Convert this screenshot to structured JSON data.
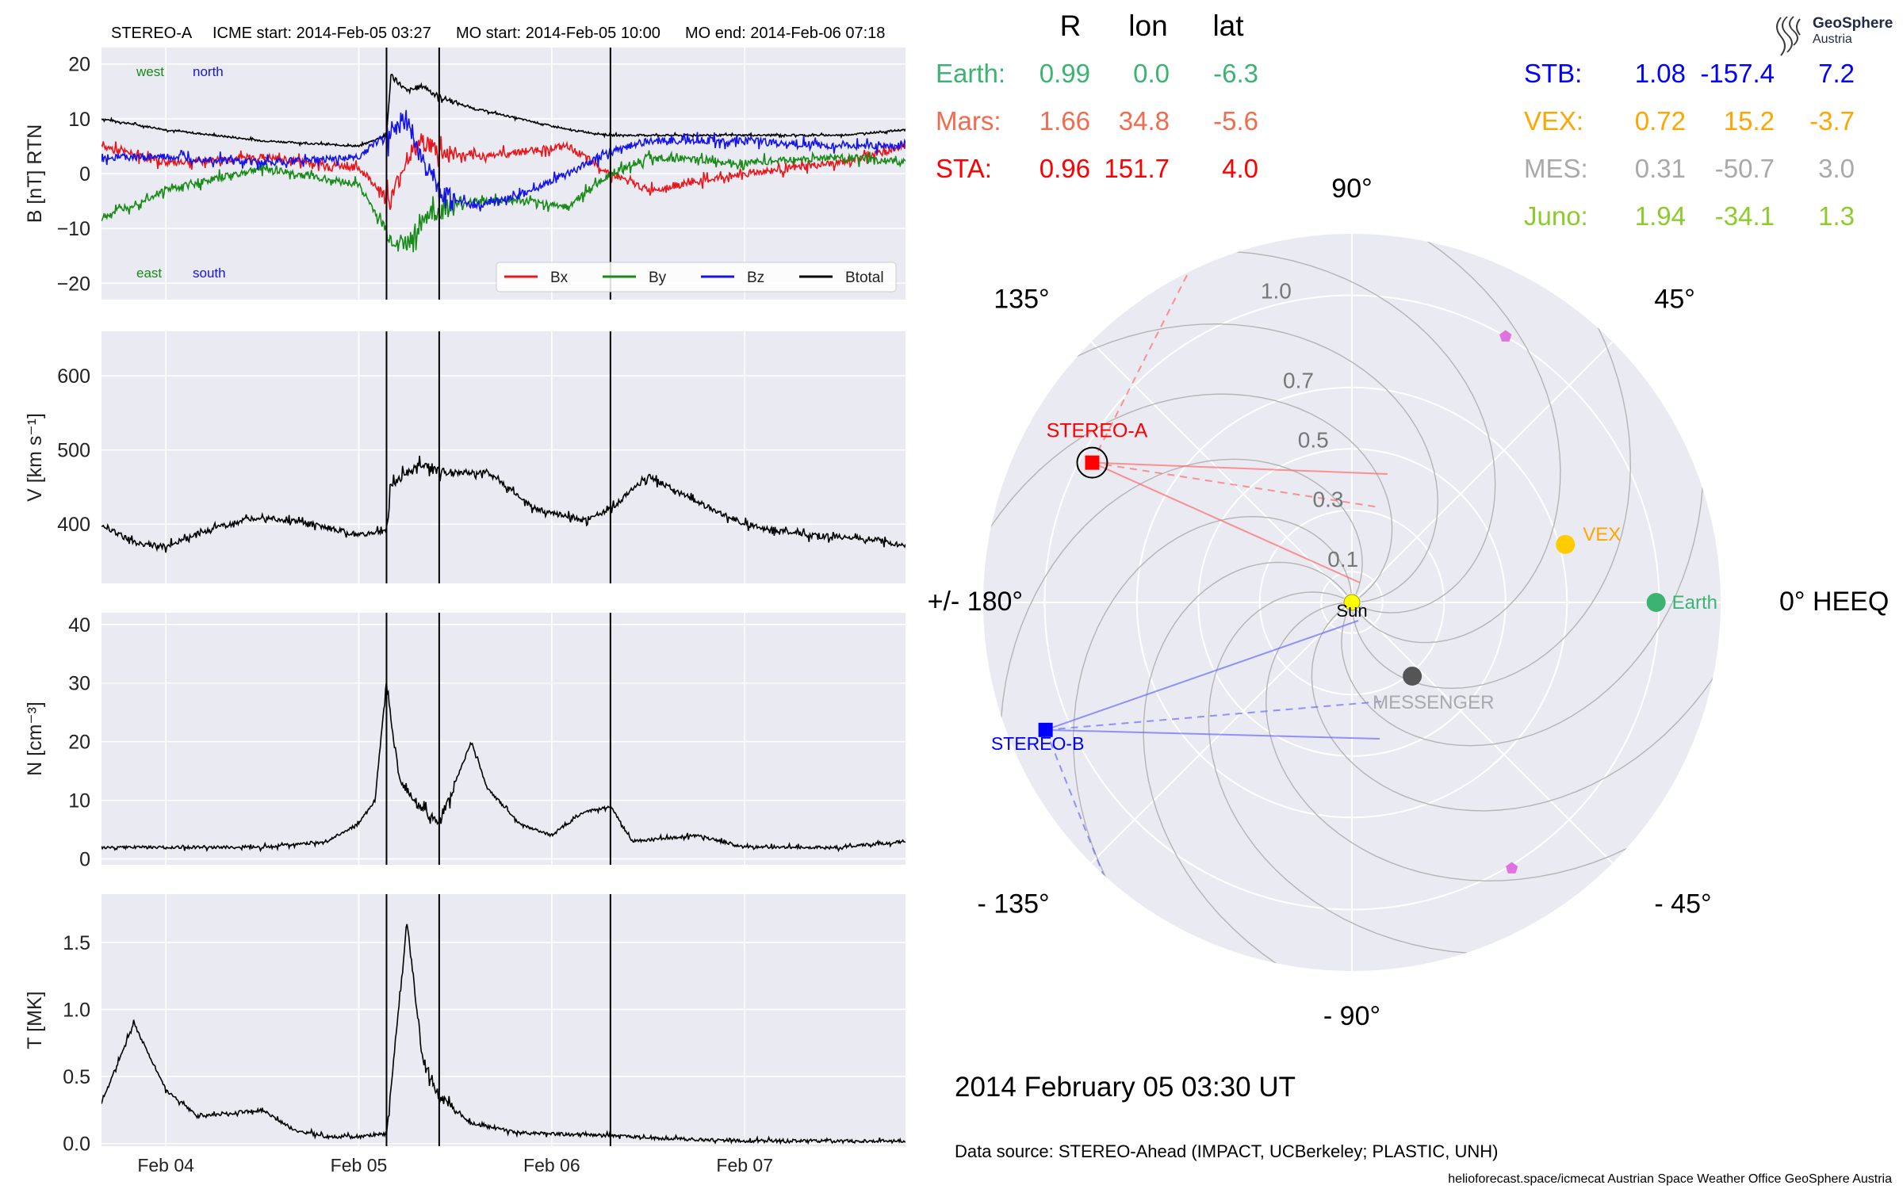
{
  "header": {
    "spacecraft": "STEREO-A",
    "icme_start": "ICME start: 2014-Feb-05 03:27",
    "mo_start": "MO start: 2014-Feb-05 10:00",
    "mo_end": "MO end: 2014-Feb-06 07:18"
  },
  "timestamp": "2014 February 05  03:30 UT",
  "data_source": "Data source: STEREO-Ahead (IMPACT, UCBerkeley; PLASTIC, UNH)",
  "footer": "helioforecast.space/icmecat   Austrian Space Weather Office   GeoSphere Austria",
  "logo": {
    "name": "GeoSphere",
    "sub": "Austria"
  },
  "colors": {
    "Bx": "#e8161b",
    "By": "#178a17",
    "Bz": "#1414e8",
    "Btotal": "#000000",
    "earth": "#3cb371",
    "mars": "#f26b4e",
    "sta": "#ff0000",
    "stb": "#0000ff",
    "vex": "#ffa500",
    "mes": "#a9a9a9",
    "juno": "#8ccc2a",
    "panel_bg": "#eaeaf2"
  },
  "table": {
    "columns": [
      "R",
      "lon",
      "lat"
    ],
    "left": [
      {
        "name": "Earth:",
        "R": "0.99",
        "lon": "0.0",
        "lat": "-6.3",
        "color_key": "earth"
      },
      {
        "name": "Mars:",
        "R": "1.66",
        "lon": "34.8",
        "lat": "-5.6",
        "color_key": "mars"
      },
      {
        "name": "STA:",
        "R": "0.96",
        "lon": "151.7",
        "lat": "4.0",
        "color_key": "sta"
      }
    ],
    "right": [
      {
        "name": "STB:",
        "R": "1.08",
        "lon": "-157.4",
        "lat": "7.2",
        "color_key": "stb"
      },
      {
        "name": "VEX:",
        "R": "0.72",
        "lon": "15.2",
        "lat": "-3.7",
        "color_key": "vex"
      },
      {
        "name": "MES:",
        "R": "0.31",
        "lon": "-50.7",
        "lat": "3.0",
        "color_key": "mes"
      },
      {
        "name": "Juno:",
        "R": "1.94",
        "lon": "-34.1",
        "lat": "1.3",
        "color_key": "juno"
      }
    ]
  },
  "chart_data": [
    {
      "type": "line",
      "panel": "magnetic_field",
      "ylabel": "B [nT] RTN",
      "ylim": [
        -23,
        23
      ],
      "yticks": [
        20,
        10,
        0,
        -10,
        -20
      ],
      "ytick_labels": [
        "20",
        "10",
        "0",
        "−10",
        "−20"
      ],
      "x_range_days": [
        "2014-02-03 16:00",
        "2014-02-07 20:00"
      ],
      "xtick_labels": [
        "Feb 04",
        "Feb 05",
        "Feb 06",
        "Feb 07"
      ],
      "xtick_dates": [
        "2014-02-04",
        "2014-02-05",
        "2014-02-06",
        "2014-02-07"
      ],
      "vlines": [
        "2014-02-05 03:27",
        "2014-02-05 10:00",
        "2014-02-06 07:18"
      ],
      "annotations": {
        "west": "west",
        "north": "north",
        "east": "east",
        "south": "south"
      },
      "legend": {
        "placement": "lower-right",
        "entries": [
          "Bx",
          "By",
          "Bz",
          "Btotal"
        ]
      },
      "grid": true,
      "series": [
        {
          "name": "Btotal",
          "x": [
            "2014-02-03 16:00",
            "2014-02-04 00:00",
            "2014-02-04 12:00",
            "2014-02-05 00:00",
            "2014-02-05 03:27",
            "2014-02-05 04:00",
            "2014-02-05 06:00",
            "2014-02-05 08:00",
            "2014-02-05 10:00",
            "2014-02-05 14:00",
            "2014-02-05 20:00",
            "2014-02-06 02:00",
            "2014-02-06 07:18",
            "2014-02-06 12:00",
            "2014-02-07 00:00",
            "2014-02-07 12:00",
            "2014-02-07 20:00"
          ],
          "y": [
            10,
            8,
            6,
            5,
            7,
            18,
            15,
            16,
            14,
            12,
            10,
            8,
            7,
            7,
            7,
            7,
            8
          ]
        },
        {
          "name": "Bx",
          "x": [
            "2014-02-03 16:00",
            "2014-02-04 00:00",
            "2014-02-04 12:00",
            "2014-02-05 00:00",
            "2014-02-05 04:00",
            "2014-02-05 06:00",
            "2014-02-05 08:00",
            "2014-02-05 10:00",
            "2014-02-05 14:00",
            "2014-02-05 20:00",
            "2014-02-06 02:00",
            "2014-02-06 07:18",
            "2014-02-06 12:00",
            "2014-02-07 00:00",
            "2014-02-07 12:00",
            "2014-02-07 20:00"
          ],
          "y": [
            5,
            2,
            3,
            1,
            -5,
            3,
            6,
            4,
            3,
            4,
            5,
            0,
            -3,
            0,
            2,
            5
          ]
        },
        {
          "name": "By",
          "x": [
            "2014-02-03 16:00",
            "2014-02-04 00:00",
            "2014-02-04 12:00",
            "2014-02-05 00:00",
            "2014-02-05 04:00",
            "2014-02-05 06:00",
            "2014-02-05 08:00",
            "2014-02-05 10:00",
            "2014-02-05 14:00",
            "2014-02-05 20:00",
            "2014-02-06 02:00",
            "2014-02-06 07:18",
            "2014-02-06 12:00",
            "2014-02-07 00:00",
            "2014-02-07 12:00",
            "2014-02-07 20:00"
          ],
          "y": [
            -8,
            -3,
            1,
            -2,
            -12,
            -13,
            -8,
            -7,
            -5,
            -5,
            -6,
            0,
            3,
            2,
            3,
            2
          ]
        },
        {
          "name": "Bz",
          "x": [
            "2014-02-03 16:00",
            "2014-02-04 00:00",
            "2014-02-04 12:00",
            "2014-02-05 00:00",
            "2014-02-05 04:00",
            "2014-02-05 06:00",
            "2014-02-05 08:00",
            "2014-02-05 10:00",
            "2014-02-05 14:00",
            "2014-02-05 20:00",
            "2014-02-06 02:00",
            "2014-02-06 07:18",
            "2014-02-06 12:00",
            "2014-02-07 00:00",
            "2014-02-07 12:00",
            "2014-02-07 20:00"
          ],
          "y": [
            3,
            3,
            2,
            3,
            8,
            10,
            2,
            -3,
            -6,
            -4,
            0,
            4,
            6,
            6,
            5,
            5
          ]
        }
      ]
    },
    {
      "type": "line",
      "panel": "speed",
      "ylabel": "V [km s⁻¹]",
      "ylim": [
        320,
        660
      ],
      "yticks": [
        600,
        500,
        400
      ],
      "ytick_labels": [
        "600",
        "500",
        "400"
      ],
      "xtick_dates": [
        "2014-02-04",
        "2014-02-05",
        "2014-02-06",
        "2014-02-07"
      ],
      "vlines": [
        "2014-02-05 03:27",
        "2014-02-05 10:00",
        "2014-02-06 07:18"
      ],
      "grid": true,
      "series": [
        {
          "name": "",
          "x": [
            "2014-02-03 16:00",
            "2014-02-03 20:00",
            "2014-02-04 00:00",
            "2014-02-04 06:00",
            "2014-02-04 12:00",
            "2014-02-04 18:00",
            "2014-02-05 00:00",
            "2014-02-05 03:27",
            "2014-02-05 04:00",
            "2014-02-05 06:00",
            "2014-02-05 08:00",
            "2014-02-05 10:00",
            "2014-02-05 16:00",
            "2014-02-05 22:00",
            "2014-02-06 04:00",
            "2014-02-06 07:18",
            "2014-02-06 12:00",
            "2014-02-06 18:00",
            "2014-02-07 00:00",
            "2014-02-07 08:00",
            "2014-02-07 16:00",
            "2014-02-07 20:00"
          ],
          "y": [
            400,
            375,
            370,
            395,
            410,
            400,
            385,
            390,
            450,
            470,
            480,
            470,
            470,
            420,
            405,
            420,
            465,
            430,
            400,
            385,
            380,
            370
          ]
        }
      ]
    },
    {
      "type": "line",
      "panel": "density",
      "ylabel": "N [cm⁻³]",
      "ylim": [
        -1,
        42
      ],
      "yticks": [
        40,
        30,
        20,
        10,
        0
      ],
      "ytick_labels": [
        "40",
        "30",
        "20",
        "10",
        "0"
      ],
      "xtick_dates": [
        "2014-02-04",
        "2014-02-05",
        "2014-02-06",
        "2014-02-07"
      ],
      "vlines": [
        "2014-02-05 03:27",
        "2014-02-05 10:00",
        "2014-02-06 07:18"
      ],
      "grid": true,
      "series": [
        {
          "name": "",
          "x": [
            "2014-02-03 16:00",
            "2014-02-04 00:00",
            "2014-02-04 12:00",
            "2014-02-04 20:00",
            "2014-02-05 00:00",
            "2014-02-05 02:00",
            "2014-02-05 03:27",
            "2014-02-05 05:00",
            "2014-02-05 08:00",
            "2014-02-05 10:00",
            "2014-02-05 14:00",
            "2014-02-05 16:00",
            "2014-02-05 20:00",
            "2014-02-06 00:00",
            "2014-02-06 04:00",
            "2014-02-06 07:18",
            "2014-02-06 10:00",
            "2014-02-06 18:00",
            "2014-02-07 00:00",
            "2014-02-07 12:00",
            "2014-02-07 20:00"
          ],
          "y": [
            2,
            2,
            2,
            3,
            6,
            10,
            30,
            14,
            8,
            6,
            20,
            12,
            6,
            4,
            8,
            9,
            3,
            4,
            2,
            2,
            3
          ]
        }
      ]
    },
    {
      "type": "line",
      "panel": "temperature",
      "ylabel": "T [MK]",
      "ylim": [
        -0.02,
        1.86
      ],
      "yticks": [
        1.5,
        1.0,
        0.5,
        0.0
      ],
      "ytick_labels": [
        "1.5",
        "1.0",
        "0.5",
        "0.0"
      ],
      "xtick_labels": [
        "Feb 04",
        "Feb 05",
        "Feb 06",
        "Feb 07"
      ],
      "xtick_dates": [
        "2014-02-04",
        "2014-02-05",
        "2014-02-06",
        "2014-02-07"
      ],
      "vlines": [
        "2014-02-05 03:27",
        "2014-02-05 10:00",
        "2014-02-06 07:18"
      ],
      "grid": true,
      "series": [
        {
          "name": "",
          "x": [
            "2014-02-03 16:00",
            "2014-02-03 20:00",
            "2014-02-04 00:00",
            "2014-02-04 04:00",
            "2014-02-04 12:00",
            "2014-02-04 16:00",
            "2014-02-04 20:00",
            "2014-02-05 00:00",
            "2014-02-05 03:27",
            "2014-02-05 06:00",
            "2014-02-05 08:00",
            "2014-02-05 10:00",
            "2014-02-05 14:00",
            "2014-02-05 20:00",
            "2014-02-06 07:18",
            "2014-02-06 12:00",
            "2014-02-07 00:00",
            "2014-02-07 20:00"
          ],
          "y": [
            0.3,
            0.9,
            0.4,
            0.2,
            0.25,
            0.1,
            0.05,
            0.05,
            0.08,
            1.65,
            0.6,
            0.35,
            0.15,
            0.08,
            0.06,
            0.04,
            0.02,
            0.02
          ]
        }
      ]
    },
    {
      "type": "scatter",
      "panel": "polar_orbit_plot",
      "theta_labels": [
        "0° HEEQ",
        "45°",
        "90°",
        "135°",
        "+/- 180°",
        "- 135°",
        "- 90°",
        "- 45°"
      ],
      "r_labels": [
        "0.1",
        "0.3",
        "0.5",
        "0.7",
        "1.0"
      ],
      "r_ticks": [
        0.1,
        0.3,
        0.5,
        0.7,
        1.0
      ],
      "rlim": [
        0,
        1.2
      ],
      "grid": true,
      "points": [
        {
          "name": "Sun",
          "r": 0.0,
          "lon": 0.0,
          "color": "#ffff00",
          "marker": "circle",
          "label": "Sun"
        },
        {
          "name": "STEREO-A",
          "r": 0.96,
          "lon": 151.7,
          "color": "#ff0000",
          "marker": "square",
          "label": "STEREO-A"
        },
        {
          "name": "STEREO-B",
          "r": 1.08,
          "lon": -157.4,
          "color": "#0000ff",
          "marker": "square",
          "label": "STEREO-B"
        },
        {
          "name": "Earth",
          "r": 0.99,
          "lon": 0.0,
          "color": "#3cb371",
          "marker": "circle",
          "label": "Earth"
        },
        {
          "name": "VEX",
          "r": 0.72,
          "lon": 15.2,
          "color": "#ffcc00",
          "marker": "circle",
          "label": "VEX"
        },
        {
          "name": "MESSENGER",
          "r": 0.31,
          "lon": -50.7,
          "color": "#555555",
          "marker": "circle",
          "label": "MESSENGER"
        },
        {
          "name": "marker-upper",
          "r": 1.0,
          "lon": 60.0,
          "color": "#e072e0",
          "marker": "pentagon",
          "label": ""
        },
        {
          "name": "marker-lower",
          "r": 1.01,
          "lon": -59.0,
          "color": "#e072e0",
          "marker": "pentagon",
          "label": ""
        }
      ]
    }
  ]
}
